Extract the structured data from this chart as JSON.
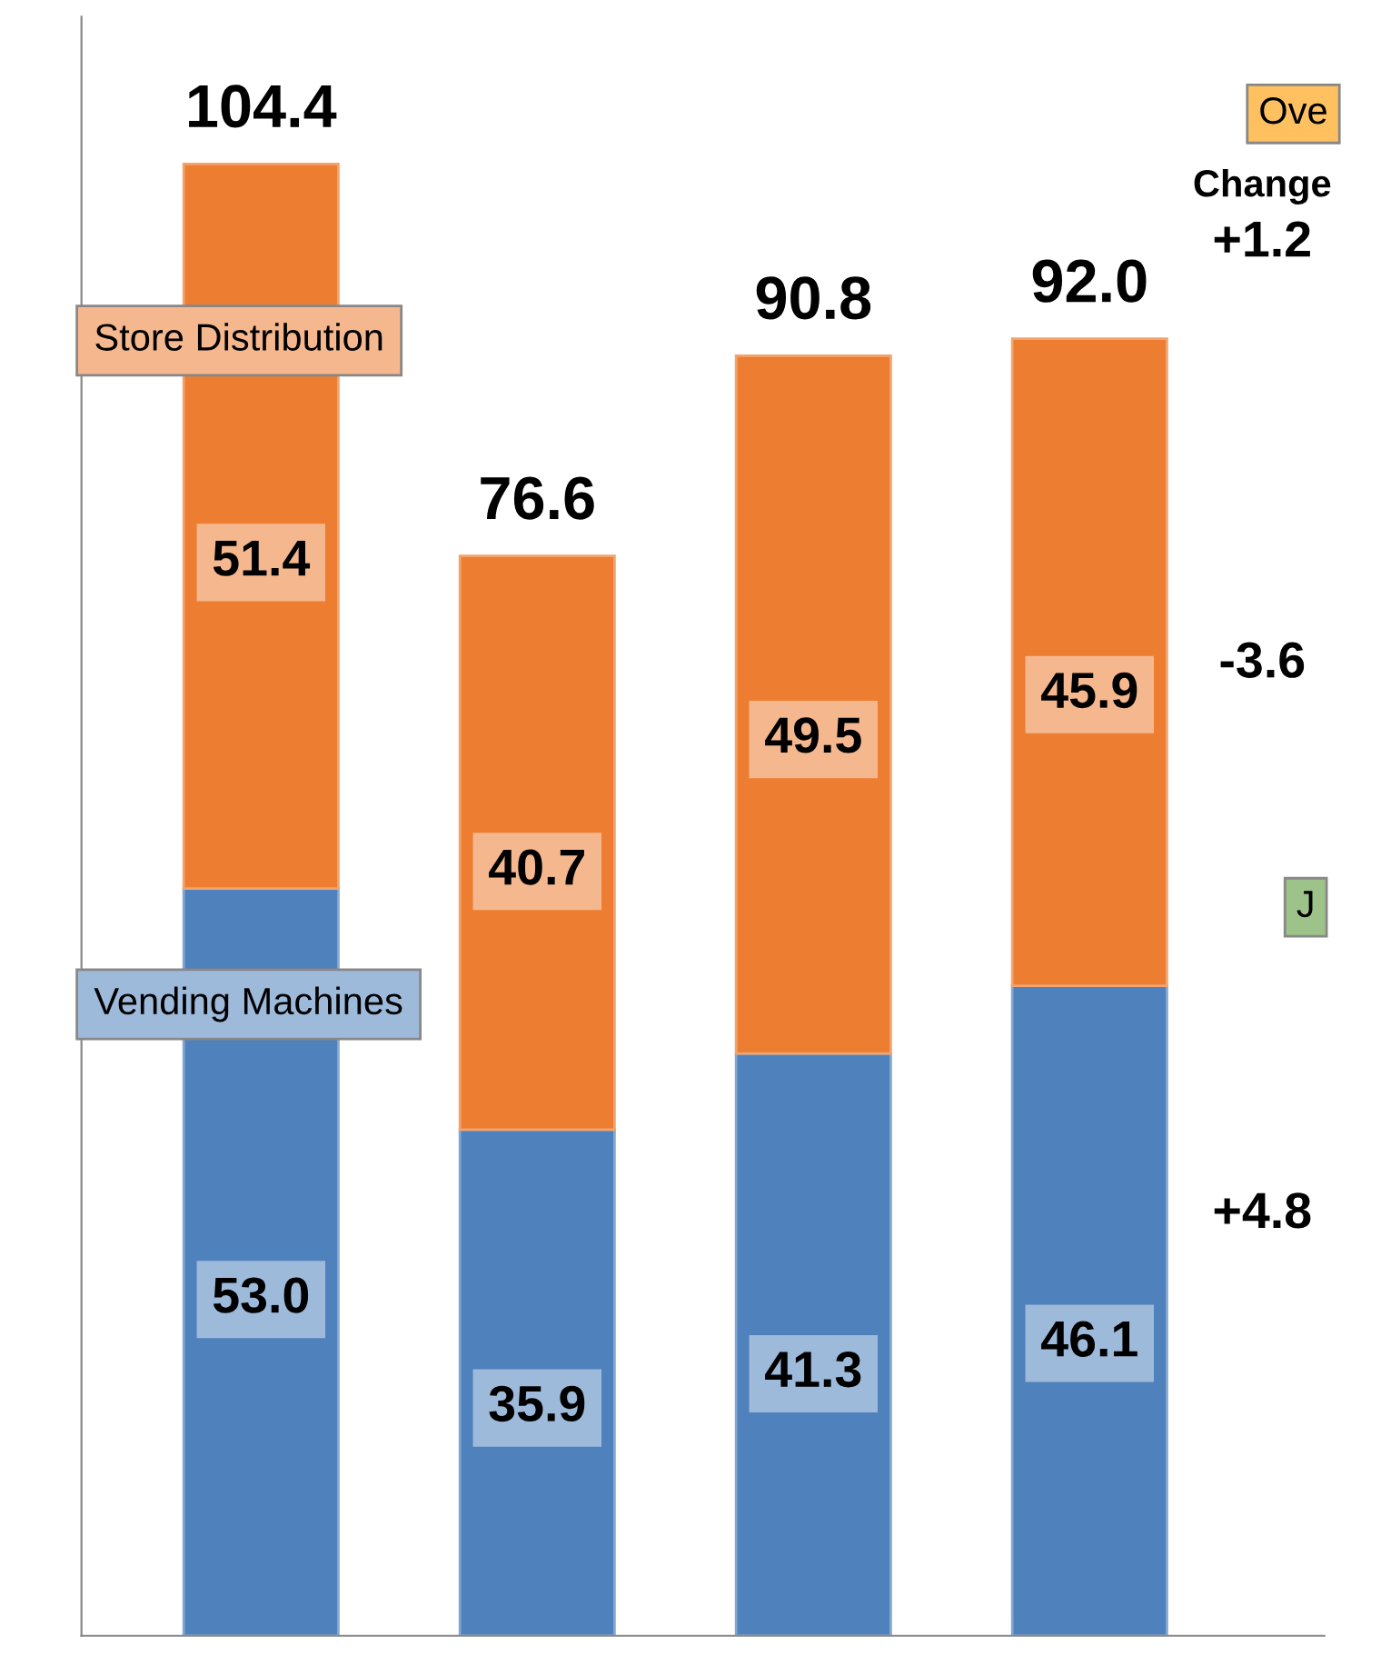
{
  "chart_data": {
    "type": "bar",
    "stacked": true,
    "categories": [
      null,
      null,
      null,
      null
    ],
    "series": [
      {
        "name": "Vending Machines",
        "color": "#4f81bd",
        "values": [
          53.0,
          35.9,
          41.3,
          46.1
        ],
        "value_labels": [
          "53.0",
          "35.9",
          "41.3",
          "46.1"
        ]
      },
      {
        "name": "Store Distribution",
        "color": "#ed7d31",
        "values": [
          51.4,
          40.7,
          49.5,
          45.9
        ],
        "value_labels": [
          "51.4",
          "40.7",
          "49.5",
          "45.9"
        ]
      }
    ],
    "totals": [
      "104.4",
      "76.6",
      "90.8",
      "92.0"
    ],
    "annotations": [
      "Ove",
      "Change",
      "+1.2",
      "-3.6",
      "J",
      "+4.8"
    ],
    "legend": false
  }
}
